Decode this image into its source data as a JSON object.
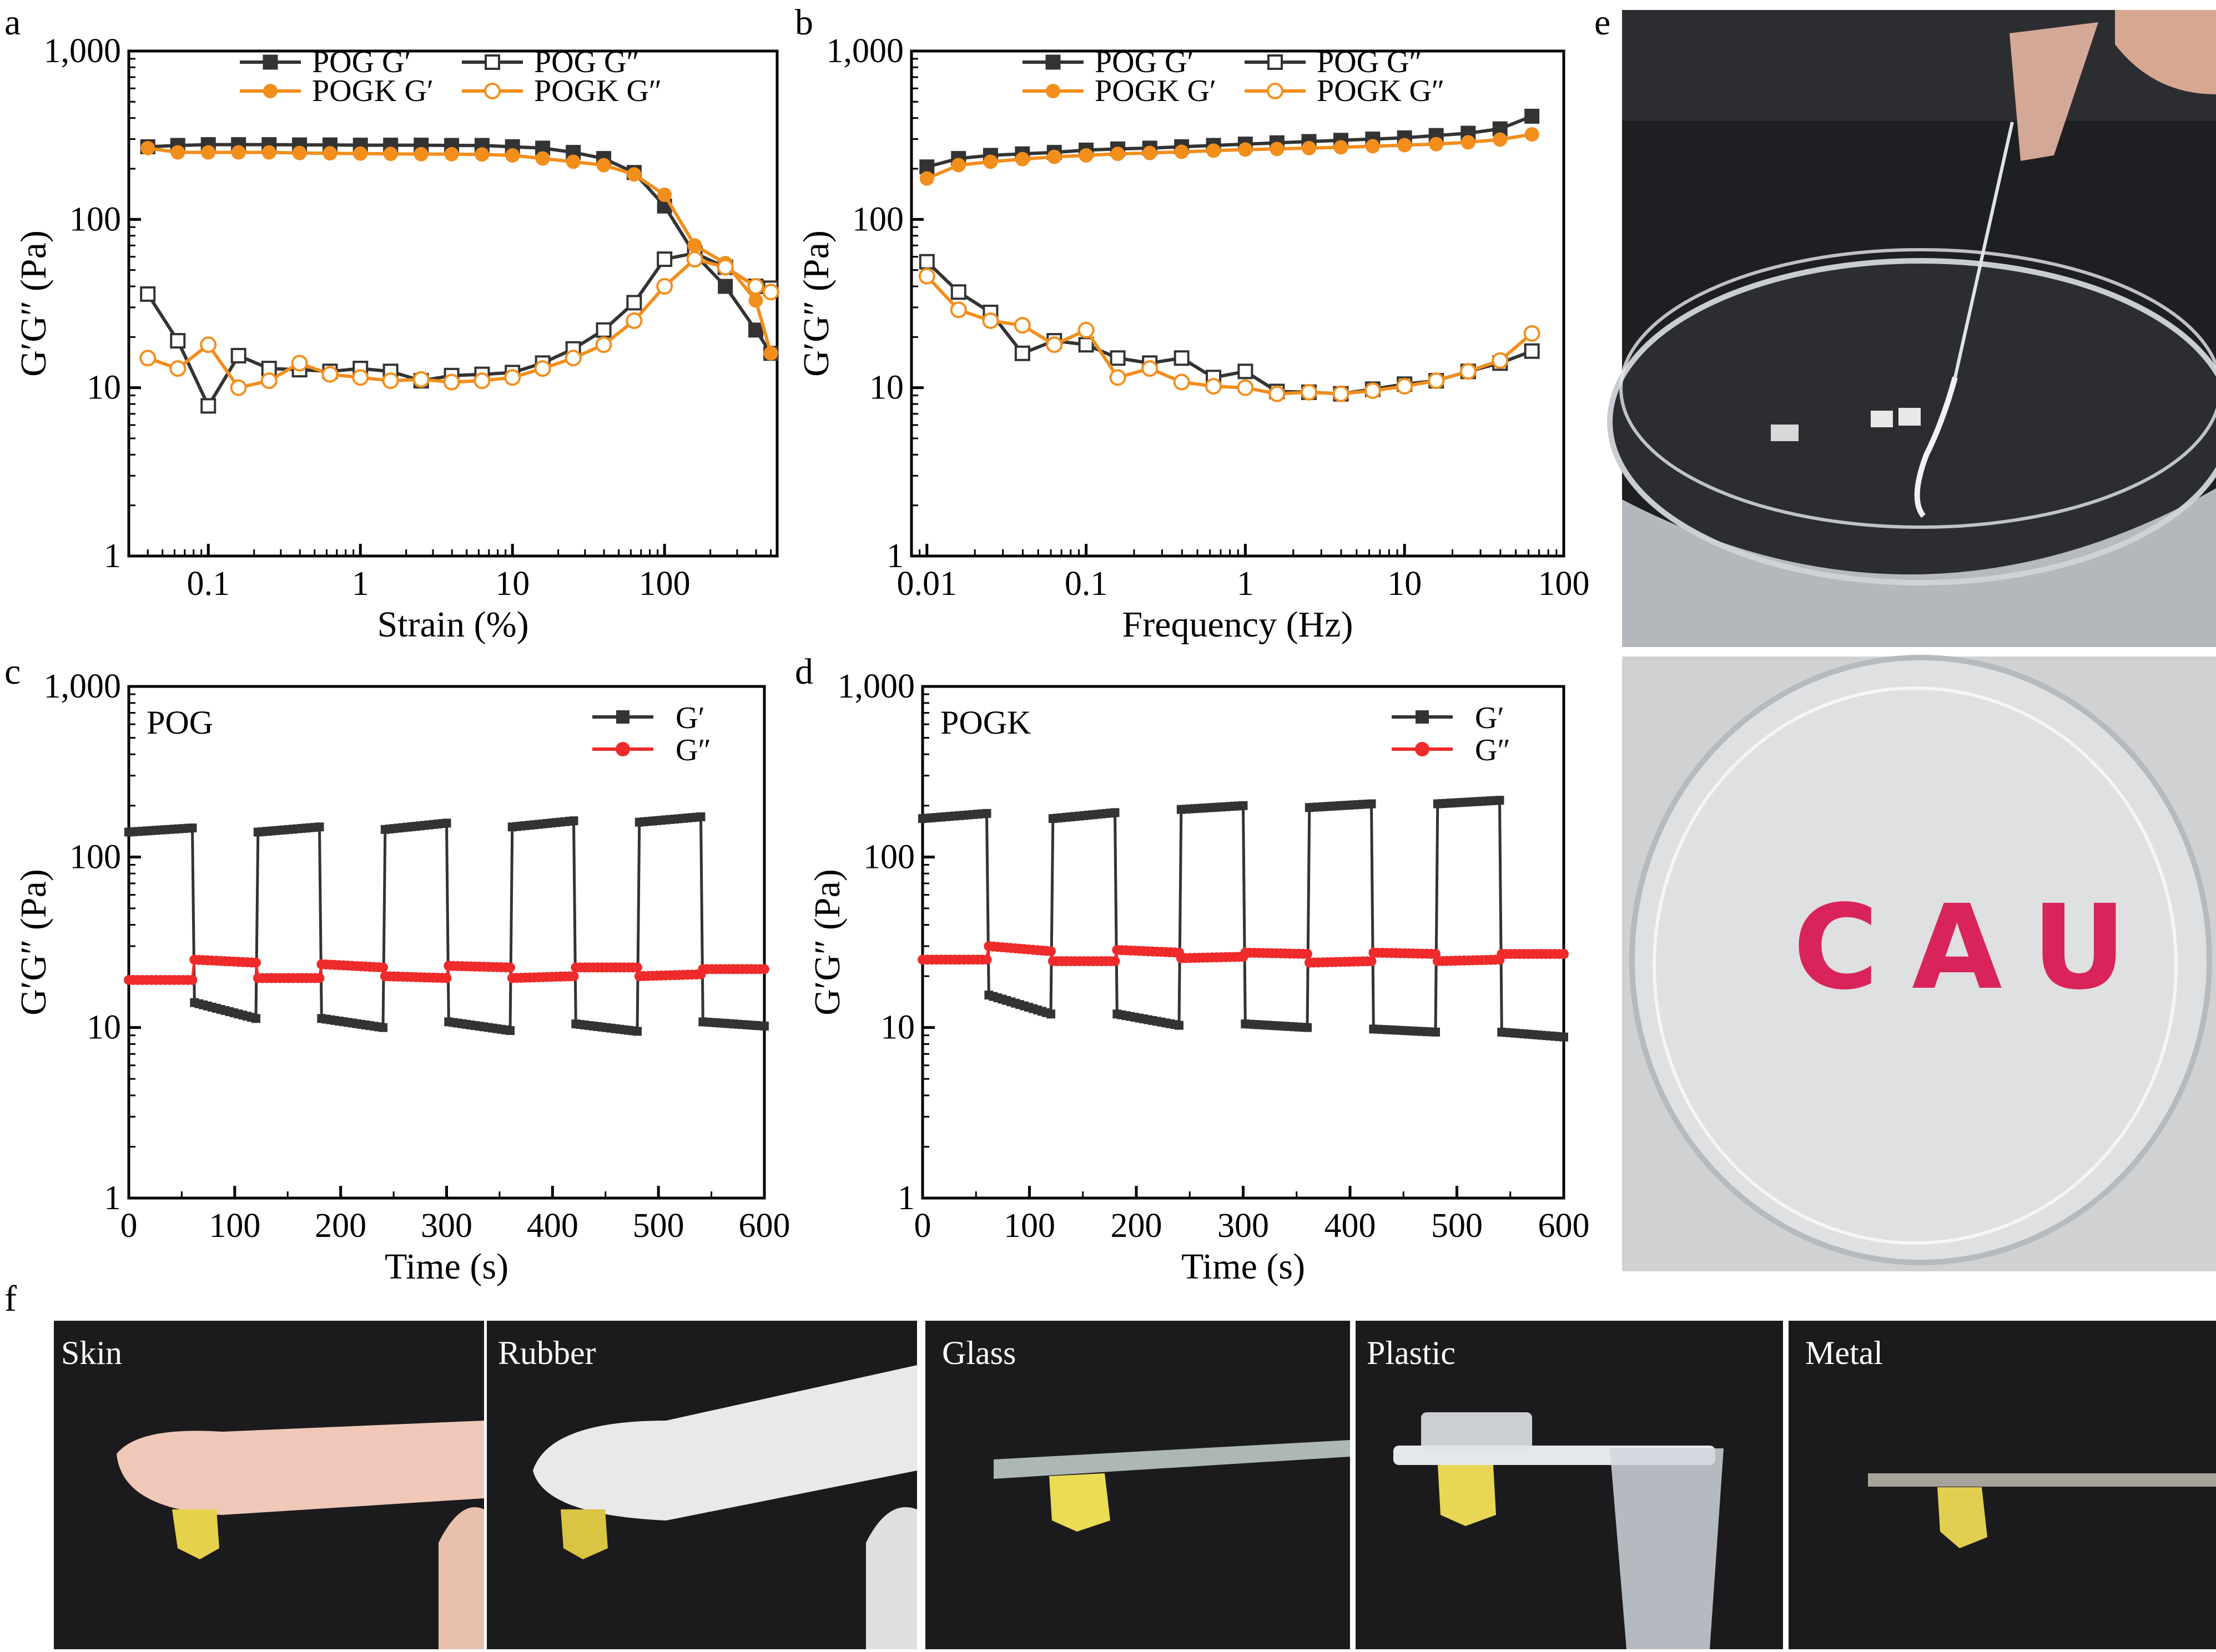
{
  "panel_letters": [
    "a",
    "b",
    "c",
    "d",
    "e",
    "f"
  ],
  "colors": {
    "pog": "#333333",
    "pogk": "#f28e1c",
    "g2": "#ee2a2a",
    "bg_photo": "#1c1c1e"
  },
  "chart_data": [
    {
      "panel": "a",
      "type": "line",
      "xscale": "log",
      "yscale": "log",
      "xlim": [
        0.03,
        550
      ],
      "ylim": [
        1,
        1000
      ],
      "xticks": [
        "0.1",
        "1",
        "10",
        "100"
      ],
      "yticks": [
        "1",
        "10",
        "100",
        "1,000"
      ],
      "xlabel": "Strain (%)",
      "ylabel": "G′G″ (Pa)",
      "legend_placement": "top",
      "x": [
        0.04,
        0.063,
        0.1,
        0.158,
        0.251,
        0.398,
        0.631,
        1,
        1.58,
        2.51,
        3.98,
        6.31,
        10,
        15.8,
        25.1,
        39.8,
        63.1,
        100,
        158,
        251,
        398,
        500
      ],
      "series": [
        {
          "name": "POG G′",
          "color": "#333333",
          "marker": "square-filled",
          "values": [
            270,
            275,
            278,
            278,
            278,
            277,
            277,
            276,
            276,
            276,
            275,
            275,
            270,
            265,
            250,
            230,
            190,
            120,
            62,
            40,
            22,
            16
          ]
        },
        {
          "name": "POG G″",
          "color": "#333333",
          "marker": "square-open",
          "values": [
            36,
            19,
            7.8,
            15.5,
            13,
            12.8,
            12.5,
            13,
            12.5,
            11,
            11.8,
            12,
            12.3,
            14,
            17,
            22,
            32,
            58,
            63,
            52,
            40,
            39
          ]
        },
        {
          "name": "POGK G′",
          "color": "#f28e1c",
          "marker": "circle-filled",
          "values": [
            265,
            250,
            250,
            250,
            250,
            248,
            247,
            246,
            245,
            244,
            244,
            243,
            240,
            230,
            220,
            210,
            185,
            140,
            70,
            55,
            33,
            16
          ]
        },
        {
          "name": "POGK G″",
          "color": "#f28e1c",
          "marker": "circle-open",
          "values": [
            15,
            13,
            18,
            10,
            11,
            14,
            12,
            11.5,
            11,
            11.2,
            10.8,
            11,
            11.5,
            13,
            15,
            18,
            25,
            40,
            58,
            52,
            40,
            37
          ]
        }
      ]
    },
    {
      "panel": "b",
      "type": "line",
      "xscale": "log",
      "yscale": "log",
      "xlim": [
        0.008,
        100
      ],
      "ylim": [
        1,
        1000
      ],
      "xticks": [
        "0.01",
        "0.1",
        "1",
        "10",
        "100"
      ],
      "yticks": [
        "1",
        "10",
        "100",
        "1,000"
      ],
      "xlabel": "Frequency (Hz)",
      "ylabel": "G′G″ (Pa)",
      "legend_placement": "top",
      "x": [
        0.01,
        0.0158,
        0.0251,
        0.0398,
        0.0631,
        0.1,
        0.158,
        0.251,
        0.398,
        0.631,
        1,
        1.58,
        2.51,
        3.98,
        6.31,
        10,
        15.8,
        25.1,
        39.8,
        63.1
      ],
      "series": [
        {
          "name": "POG G′",
          "color": "#333333",
          "marker": "square-filled",
          "values": [
            205,
            230,
            240,
            245,
            250,
            258,
            262,
            265,
            270,
            275,
            280,
            285,
            290,
            295,
            300,
            305,
            315,
            325,
            345,
            410
          ]
        },
        {
          "name": "POG G″",
          "color": "#333333",
          "marker": "square-open",
          "values": [
            56,
            37,
            28,
            16,
            19,
            18,
            15,
            14,
            15,
            11.5,
            12.5,
            9.5,
            9.4,
            9.2,
            9.8,
            10.5,
            11,
            12.5,
            14,
            16.5
          ]
        },
        {
          "name": "POGK G′",
          "color": "#f28e1c",
          "marker": "circle-filled",
          "values": [
            175,
            210,
            220,
            228,
            235,
            240,
            245,
            248,
            252,
            256,
            260,
            262,
            265,
            268,
            272,
            276,
            280,
            287,
            298,
            320
          ]
        },
        {
          "name": "POGK G″",
          "color": "#f28e1c",
          "marker": "circle-open",
          "values": [
            46,
            29,
            25,
            23.5,
            18,
            22,
            11.5,
            13,
            10.8,
            10.2,
            10,
            9.2,
            9.4,
            9.2,
            9.6,
            10.2,
            11,
            12.5,
            14.5,
            21
          ]
        }
      ]
    },
    {
      "panel": "c",
      "type": "line",
      "xscale": "linear",
      "yscale": "log",
      "xlim": [
        0,
        600
      ],
      "ylim": [
        1,
        1000
      ],
      "xticks": [
        "0",
        "100",
        "200",
        "300",
        "400",
        "500",
        "600"
      ],
      "yticks": [
        "1",
        "10",
        "100",
        "1,000"
      ],
      "xlabel": "Time (s)",
      "ylabel": "G′G″ (Pa)",
      "annotation": "POG",
      "legend_placement": "top-right",
      "series": [
        {
          "name": "G′",
          "color": "#333333",
          "segments": [
            {
              "x0": 0,
              "x1": 60,
              "v0": 140,
              "v1": 148
            },
            {
              "x0": 62,
              "x1": 120,
              "v0": 14,
              "v1": 11.3
            },
            {
              "x0": 122,
              "x1": 180,
              "v0": 140,
              "v1": 150
            },
            {
              "x0": 182,
              "x1": 240,
              "v0": 11.3,
              "v1": 10
            },
            {
              "x0": 242,
              "x1": 300,
              "v0": 145,
              "v1": 158
            },
            {
              "x0": 302,
              "x1": 360,
              "v0": 10.8,
              "v1": 9.6
            },
            {
              "x0": 362,
              "x1": 420,
              "v0": 150,
              "v1": 163
            },
            {
              "x0": 422,
              "x1": 480,
              "v0": 10.5,
              "v1": 9.5
            },
            {
              "x0": 482,
              "x1": 540,
              "v0": 160,
              "v1": 172
            },
            {
              "x0": 542,
              "x1": 600,
              "v0": 10.8,
              "v1": 10.2
            }
          ]
        },
        {
          "name": "G″",
          "color": "#ee2a2a",
          "segments": [
            {
              "x0": 0,
              "x1": 60,
              "v0": 19,
              "v1": 19
            },
            {
              "x0": 62,
              "x1": 120,
              "v0": 25,
              "v1": 24
            },
            {
              "x0": 122,
              "x1": 180,
              "v0": 19.5,
              "v1": 19.5
            },
            {
              "x0": 182,
              "x1": 240,
              "v0": 23.5,
              "v1": 22.5
            },
            {
              "x0": 242,
              "x1": 300,
              "v0": 20,
              "v1": 19.5
            },
            {
              "x0": 302,
              "x1": 360,
              "v0": 23,
              "v1": 22.5
            },
            {
              "x0": 362,
              "x1": 420,
              "v0": 19.5,
              "v1": 20
            },
            {
              "x0": 422,
              "x1": 480,
              "v0": 22.5,
              "v1": 22.5
            },
            {
              "x0": 482,
              "x1": 540,
              "v0": 20,
              "v1": 20.5
            },
            {
              "x0": 542,
              "x1": 600,
              "v0": 22,
              "v1": 22
            }
          ]
        }
      ]
    },
    {
      "panel": "d",
      "type": "line",
      "xscale": "linear",
      "yscale": "log",
      "xlim": [
        0,
        600
      ],
      "ylim": [
        1,
        1000
      ],
      "xticks": [
        "0",
        "100",
        "200",
        "300",
        "400",
        "500",
        "600"
      ],
      "yticks": [
        "1",
        "10",
        "100",
        "1,000"
      ],
      "xlabel": "Time (s)",
      "ylabel": "G′G″ (Pa)",
      "annotation": "POGK",
      "legend_placement": "top-right",
      "series": [
        {
          "name": "G′",
          "color": "#333333",
          "segments": [
            {
              "x0": 0,
              "x1": 60,
              "v0": 168,
              "v1": 180
            },
            {
              "x0": 62,
              "x1": 120,
              "v0": 15.5,
              "v1": 12
            },
            {
              "x0": 122,
              "x1": 180,
              "v0": 168,
              "v1": 182
            },
            {
              "x0": 182,
              "x1": 240,
              "v0": 12,
              "v1": 10.3
            },
            {
              "x0": 242,
              "x1": 300,
              "v0": 190,
              "v1": 200
            },
            {
              "x0": 302,
              "x1": 360,
              "v0": 10.5,
              "v1": 10
            },
            {
              "x0": 362,
              "x1": 420,
              "v0": 195,
              "v1": 205
            },
            {
              "x0": 422,
              "x1": 480,
              "v0": 9.8,
              "v1": 9.4
            },
            {
              "x0": 482,
              "x1": 540,
              "v0": 205,
              "v1": 215
            },
            {
              "x0": 542,
              "x1": 600,
              "v0": 9.4,
              "v1": 8.8
            }
          ]
        },
        {
          "name": "G″",
          "color": "#ee2a2a",
          "segments": [
            {
              "x0": 0,
              "x1": 60,
              "v0": 25,
              "v1": 25
            },
            {
              "x0": 62,
              "x1": 120,
              "v0": 30,
              "v1": 28
            },
            {
              "x0": 122,
              "x1": 180,
              "v0": 24.5,
              "v1": 24.5
            },
            {
              "x0": 182,
              "x1": 240,
              "v0": 28.5,
              "v1": 27.5
            },
            {
              "x0": 242,
              "x1": 300,
              "v0": 25.5,
              "v1": 26
            },
            {
              "x0": 302,
              "x1": 360,
              "v0": 27.5,
              "v1": 27
            },
            {
              "x0": 362,
              "x1": 420,
              "v0": 24,
              "v1": 24.5
            },
            {
              "x0": 422,
              "x1": 480,
              "v0": 27.5,
              "v1": 27
            },
            {
              "x0": 482,
              "x1": 540,
              "v0": 24.5,
              "v1": 25
            },
            {
              "x0": 542,
              "x1": 600,
              "v0": 27,
              "v1": 27
            }
          ]
        }
      ]
    }
  ],
  "photos_e": {
    "bottom_text": "CAU"
  },
  "photos_f": [
    "Skin",
    "Rubber",
    "Glass",
    "Plastic",
    "Metal"
  ]
}
